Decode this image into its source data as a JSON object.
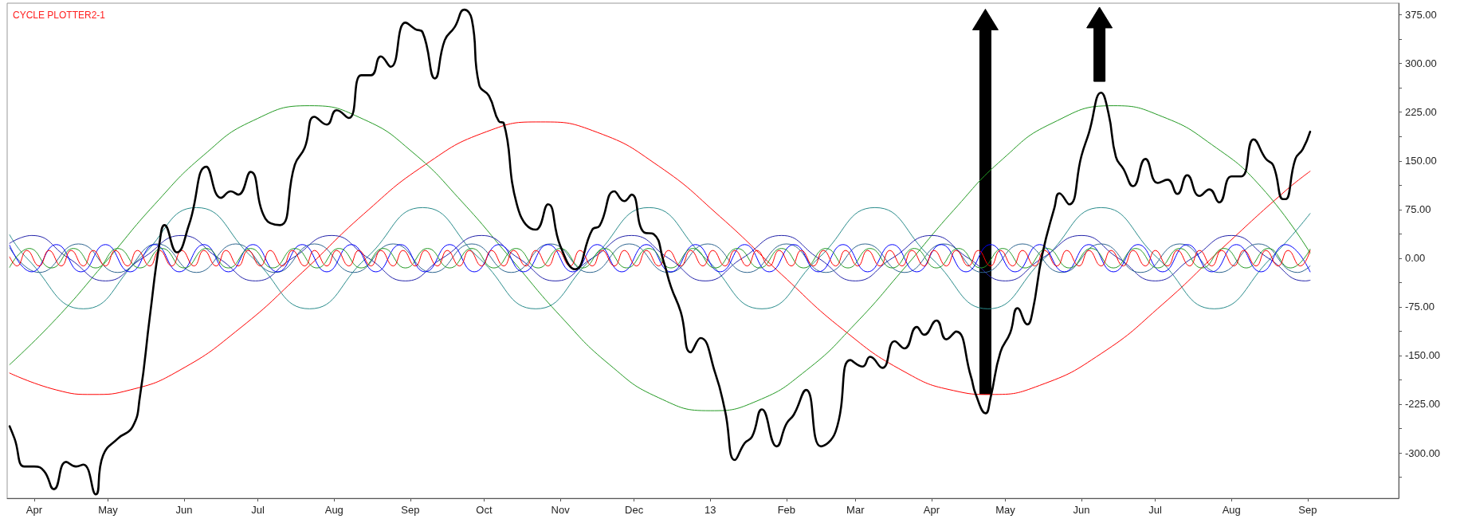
{
  "chart_data": {
    "type": "line",
    "title": "CYCLE PLOTTER2-1",
    "marker": "none",
    "line_style": "solid",
    "xlim": [
      "2012-03-21",
      "2013-10-08"
    ],
    "xticks": [
      {
        "value": "2012-04-01",
        "label": "Apr"
      },
      {
        "value": "2012-05-01",
        "label": "May"
      },
      {
        "value": "2012-06-01",
        "label": "Jun"
      },
      {
        "value": "2012-07-01",
        "label": "Jul"
      },
      {
        "value": "2012-08-01",
        "label": "Aug"
      },
      {
        "value": "2012-09-01",
        "label": "Sep"
      },
      {
        "value": "2012-10-01",
        "label": "Oct"
      },
      {
        "value": "2012-11-01",
        "label": "Nov"
      },
      {
        "value": "2012-12-01",
        "label": "Dec"
      },
      {
        "value": "2013-01-01",
        "label": "13"
      },
      {
        "value": "2013-02-01",
        "label": "Feb"
      },
      {
        "value": "2013-03-01",
        "label": "Mar"
      },
      {
        "value": "2013-04-01",
        "label": "Apr"
      },
      {
        "value": "2013-05-01",
        "label": "May"
      },
      {
        "value": "2013-06-01",
        "label": "Jun"
      },
      {
        "value": "2013-07-01",
        "label": "Jul"
      },
      {
        "value": "2013-08-01",
        "label": "Aug"
      },
      {
        "value": "2013-09-01",
        "label": "Sep"
      }
    ],
    "ylim": [
      -370,
      393
    ],
    "yticks": [
      {
        "value": 375,
        "label": "375.00"
      },
      {
        "value": 337.5,
        "label": null
      },
      {
        "value": 300,
        "label": "300.00"
      },
      {
        "value": 262.5,
        "label": null
      },
      {
        "value": 225,
        "label": "225.00"
      },
      {
        "value": 187.5,
        "label": null
      },
      {
        "value": 150,
        "label": "150.00"
      },
      {
        "value": 112.5,
        "label": null
      },
      {
        "value": 75,
        "label": "75.00"
      },
      {
        "value": 37.5,
        "label": null
      },
      {
        "value": 0,
        "label": "0.00"
      },
      {
        "value": -37.5,
        "label": null
      },
      {
        "value": -75,
        "label": "-75.00"
      },
      {
        "value": -112.5,
        "label": null
      },
      {
        "value": -150,
        "label": "-150.00"
      },
      {
        "value": -187.5,
        "label": null
      },
      {
        "value": -225,
        "label": "-225.00"
      },
      {
        "value": -262.5,
        "label": null
      },
      {
        "value": -300,
        "label": "-300.00"
      },
      {
        "value": -337.5,
        "label": null
      }
    ],
    "series": [
      {
        "color": "#000000",
        "x": [
          "2012-03-22",
          "2012-03-24",
          "2012-03-28",
          "2012-04-01",
          "2012-04-05",
          "2012-04-09",
          "2012-04-14",
          "2012-04-18",
          "2012-04-21",
          "2012-04-26",
          "2012-04-29",
          "2012-05-05",
          "2012-05-11",
          "2012-05-14",
          "2012-05-18",
          "2012-05-22",
          "2012-05-24",
          "2012-05-29",
          "2012-06-03",
          "2012-06-10",
          "2012-06-16",
          "2012-06-20",
          "2012-06-23",
          "2012-06-28",
          "2012-07-04",
          "2012-07-10",
          "2012-07-16",
          "2012-07-20",
          "2012-07-24",
          "2012-07-29",
          "2012-08-02",
          "2012-08-07",
          "2012-08-12",
          "2012-08-16",
          "2012-08-20",
          "2012-08-24",
          "2012-08-30",
          "2012-09-03",
          "2012-09-06",
          "2012-09-11",
          "2012-09-15",
          "2012-09-19",
          "2012-09-23",
          "2012-09-26",
          "2012-09-29",
          "2012-10-03",
          "2012-10-07",
          "2012-10-09",
          "2012-10-15",
          "2012-10-22",
          "2012-10-27",
          "2012-11-01",
          "2012-11-07",
          "2012-11-14",
          "2012-11-17",
          "2012-11-23",
          "2012-11-27",
          "2012-11-30",
          "2012-12-05",
          "2012-12-09",
          "2012-12-13",
          "2012-12-16",
          "2012-12-20",
          "2012-12-24",
          "2012-12-28",
          "2013-01-03",
          "2013-01-07",
          "2013-01-11",
          "2013-01-15",
          "2013-01-18",
          "2013-01-22",
          "2013-01-28",
          "2013-02-01",
          "2013-02-04",
          "2013-02-09",
          "2013-02-15",
          "2013-02-21",
          "2013-02-27",
          "2013-03-04",
          "2013-03-07",
          "2013-03-12",
          "2013-03-17",
          "2013-03-21",
          "2013-03-26",
          "2013-03-29",
          "2013-04-03",
          "2013-04-07",
          "2013-04-11",
          "2013-04-17",
          "2013-04-19",
          "2013-04-23",
          "2013-04-25",
          "2013-04-29",
          "2013-05-03",
          "2013-05-06",
          "2013-05-10",
          "2013-05-12",
          "2013-05-16",
          "2013-05-21",
          "2013-05-23",
          "2013-05-27",
          "2013-06-01",
          "2013-06-04",
          "2013-06-09",
          "2013-06-12",
          "2013-06-15",
          "2013-06-18",
          "2013-06-22",
          "2013-06-27",
          "2013-07-02",
          "2013-07-06",
          "2013-07-10",
          "2013-07-14",
          "2013-07-19",
          "2013-07-23",
          "2013-07-27",
          "2013-08-01",
          "2013-08-05",
          "2013-08-10",
          "2013-08-15",
          "2013-08-18",
          "2013-08-22",
          "2013-08-23",
          "2013-08-27",
          "2013-08-30",
          "2013-09-02"
        ],
        "values": [
          -259,
          -278,
          -321,
          -321,
          -328,
          -356,
          -314,
          -321,
          -318,
          -364,
          -304,
          -278,
          -260,
          -213,
          -91,
          24,
          51,
          9,
          52,
          141,
          93,
          103,
          98,
          133,
          61,
          51,
          144,
          170,
          218,
          206,
          228,
          216,
          282,
          282,
          311,
          295,
          363,
          353,
          348,
          277,
          336,
          356,
          383,
          368,
          267,
          250,
          211,
          208,
          74,
          44,
          83,
          19,
          -17,
          44,
          50,
          103,
          88,
          98,
          40,
          37,
          -5,
          -44,
          -83,
          -145,
          -123,
          -177,
          -235,
          -311,
          -285,
          -275,
          -233,
          -290,
          -255,
          -241,
          -203,
          -290,
          -267,
          -157,
          -167,
          -152,
          -169,
          -128,
          -139,
          -106,
          -118,
          -96,
          -125,
          -113,
          -182,
          -210,
          -239,
          -215,
          -145,
          -115,
          -77,
          -102,
          -84,
          5,
          78,
          100,
          83,
          158,
          193,
          255,
          223,
          156,
          138,
          111,
          153,
          116,
          121,
          99,
          128,
          96,
          106,
          86,
          126,
          126,
          183,
          153,
          143,
          91,
          91,
          153,
          168,
          195
        ]
      },
      {
        "color": "#ff0000",
        "x": [
          "2012-03-22",
          "2012-04-10",
          "2012-04-25",
          "2012-05-10",
          "2012-05-30",
          "2012-06-24",
          "2012-07-19",
          "2012-08-13",
          "2012-09-07",
          "2012-10-02",
          "2012-10-24",
          "2012-11-16",
          "2012-12-11",
          "2013-01-05",
          "2013-01-30",
          "2013-02-24",
          "2013-03-21",
          "2013-04-10",
          "2013-04-25",
          "2013-05-15",
          "2013-06-09",
          "2013-07-04",
          "2013-07-29",
          "2013-08-23",
          "2013-09-02"
        ],
        "values": [
          -177,
          -203,
          -210,
          -203,
          -173,
          -107,
          -22,
          68,
          144,
          195,
          210,
          194,
          142,
          64,
          -25,
          -110,
          -175,
          -204,
          -210,
          -196,
          -147,
          -71,
          18,
          104,
          134
        ]
      },
      {
        "color": "#229922",
        "x": [
          "2012-03-22",
          "2012-04-10",
          "2012-04-30",
          "2012-05-20",
          "2012-06-09",
          "2012-06-29",
          "2012-07-22",
          "2012-08-13",
          "2012-09-02",
          "2012-09-22",
          "2012-10-12",
          "2012-11-01",
          "2012-11-21",
          "2012-12-11",
          "2013-01-01",
          "2013-01-20",
          "2013-02-09",
          "2013-03-01",
          "2013-03-21",
          "2013-04-10",
          "2013-04-30",
          "2013-05-20",
          "2013-06-14",
          "2013-07-04",
          "2013-07-24",
          "2013-08-13",
          "2013-09-02"
        ],
        "values": [
          -164,
          -93,
          -6,
          83,
          159,
          212,
          235,
          214,
          163,
          87,
          -1,
          -89,
          -164,
          -215,
          -235,
          -220,
          -173,
          -101,
          -15,
          74,
          153,
          208,
          235,
          218,
          175,
          110,
          8
        ]
      },
      {
        "color": "#2a8c8c",
        "x": [
          "2012-03-22",
          "2012-03-29",
          "2012-04-21",
          "2012-05-14",
          "2012-06-06",
          "2012-06-29",
          "2012-07-22",
          "2012-08-14",
          "2012-09-06",
          "2012-09-29",
          "2012-10-22",
          "2012-11-14",
          "2012-12-07",
          "2012-12-30",
          "2013-01-22",
          "2013-02-14",
          "2013-03-09",
          "2013-04-01",
          "2013-04-24",
          "2013-05-17",
          "2013-06-09",
          "2013-07-02",
          "2013-07-25",
          "2013-08-17",
          "2013-09-02"
        ],
        "values": [
          36,
          0,
          -78,
          0,
          78,
          0,
          -78,
          0,
          78,
          0,
          -78,
          0,
          78,
          0,
          -78,
          0,
          78,
          0,
          -78,
          0,
          78,
          0,
          -78,
          0,
          69
        ]
      },
      {
        "color": "#2222aa",
        "x": [
          "2012-03-22",
          "2012-03-31",
          "2012-04-15",
          "2012-04-30",
          "2012-05-15",
          "2012-05-31",
          "2012-06-15",
          "2012-06-30",
          "2012-07-15",
          "2012-07-31",
          "2012-08-15",
          "2012-08-30",
          "2012-09-14",
          "2012-09-30",
          "2012-10-15",
          "2012-10-30",
          "2012-11-14",
          "2012-11-30",
          "2012-12-15",
          "2012-12-30",
          "2013-01-14",
          "2013-01-30",
          "2013-02-14",
          "2013-03-01",
          "2013-03-16",
          "2013-04-01",
          "2013-04-16",
          "2013-05-01",
          "2013-05-16",
          "2013-06-01",
          "2013-06-16",
          "2013-07-01",
          "2013-07-16",
          "2013-08-01",
          "2013-08-16",
          "2013-08-31",
          "2013-09-02"
        ],
        "values": [
          23,
          35,
          0,
          -35,
          0,
          35,
          0,
          -35,
          0,
          35,
          0,
          -35,
          0,
          35,
          0,
          -35,
          0,
          35,
          0,
          -35,
          0,
          35,
          0,
          -35,
          0,
          35,
          0,
          -35,
          0,
          35,
          0,
          -35,
          0,
          35,
          0,
          -35,
          -34
        ]
      },
      {
        "color": "#2f6690",
        "x": [
          "2012-03-22",
          "2012-04-03",
          "2012-04-19",
          "2012-05-05",
          "2012-05-21",
          "2012-06-06",
          "2012-06-22",
          "2012-07-08",
          "2012-07-24",
          "2012-08-09",
          "2012-08-25",
          "2012-09-10",
          "2012-09-26",
          "2012-10-12",
          "2012-10-28",
          "2012-11-13",
          "2012-11-29",
          "2012-12-15",
          "2012-12-31",
          "2013-01-16",
          "2013-02-01",
          "2013-02-17",
          "2013-03-05",
          "2013-03-21",
          "2013-04-06",
          "2013-04-22",
          "2013-05-08",
          "2013-05-24",
          "2013-06-09",
          "2013-06-25",
          "2013-07-11",
          "2013-07-27",
          "2013-08-12",
          "2013-08-28",
          "2013-09-02"
        ],
        "values": [
          16,
          -22,
          22,
          -22,
          22,
          -22,
          22,
          -22,
          22,
          -22,
          22,
          -22,
          22,
          -22,
          22,
          -22,
          22,
          -22,
          22,
          -22,
          22,
          -22,
          22,
          -22,
          22,
          -22,
          22,
          -22,
          22,
          -22,
          22,
          -22,
          22,
          -22,
          -12
        ]
      },
      {
        "color": "#0000ff",
        "x": [
          "2012-03-22",
          "2012-03-31",
          "2012-04-10",
          "2012-04-20",
          "2012-04-30",
          "2012-05-10",
          "2012-05-20",
          "2012-05-30",
          "2012-06-09",
          "2012-06-19",
          "2012-06-29",
          "2012-07-09",
          "2012-07-19",
          "2012-07-29",
          "2012-08-08",
          "2012-08-18",
          "2012-08-28",
          "2012-09-07",
          "2012-09-17",
          "2012-09-27",
          "2012-10-07",
          "2012-10-17",
          "2012-10-27",
          "2012-11-06",
          "2012-11-16",
          "2012-11-26",
          "2012-12-06",
          "2012-12-16",
          "2012-12-26",
          "2013-01-05",
          "2013-01-15",
          "2013-01-25",
          "2013-02-04",
          "2013-02-14",
          "2013-02-24",
          "2013-03-06",
          "2013-03-16",
          "2013-03-26",
          "2013-04-05",
          "2013-04-15",
          "2013-04-25",
          "2013-05-05",
          "2013-05-15",
          "2013-05-25",
          "2013-06-04",
          "2013-06-14",
          "2013-06-24",
          "2013-07-04",
          "2013-07-14",
          "2013-07-24",
          "2013-08-03",
          "2013-08-13",
          "2013-08-23",
          "2013-09-02"
        ],
        "values": [
          20,
          -21,
          21,
          -21,
          21,
          -21,
          21,
          -21,
          21,
          -21,
          21,
          -21,
          21,
          -21,
          21,
          -21,
          21,
          -21,
          21,
          -21,
          21,
          -21,
          21,
          -21,
          21,
          -21,
          21,
          -21,
          21,
          -21,
          21,
          -21,
          21,
          -21,
          21,
          -21,
          21,
          -21,
          21,
          -21,
          21,
          -21,
          21,
          -21,
          21,
          -21,
          21,
          -21,
          21,
          -21,
          21,
          -21,
          21,
          -21
        ]
      },
      {
        "color": "#229922",
        "x": [
          "2012-03-22",
          "2012-03-30",
          "2012-04-08",
          "2012-04-17",
          "2012-04-26",
          "2012-05-05",
          "2012-05-14",
          "2012-05-23",
          "2012-06-01",
          "2012-06-10",
          "2012-06-19",
          "2012-06-28",
          "2012-07-07",
          "2012-07-16",
          "2012-07-25",
          "2012-08-03",
          "2012-08-12",
          "2012-08-21",
          "2012-08-30",
          "2012-09-08",
          "2012-09-17",
          "2012-09-26",
          "2012-10-05",
          "2012-10-14",
          "2012-10-23",
          "2012-11-01",
          "2012-11-10",
          "2012-11-19",
          "2012-11-28",
          "2012-12-07",
          "2012-12-16",
          "2012-12-25",
          "2013-01-03",
          "2013-01-12",
          "2013-01-21",
          "2013-01-30",
          "2013-02-08",
          "2013-02-17",
          "2013-02-26",
          "2013-03-07",
          "2013-03-16",
          "2013-03-25",
          "2013-04-03",
          "2013-04-12",
          "2013-04-21",
          "2013-04-30",
          "2013-05-09",
          "2013-05-18",
          "2013-05-27",
          "2013-06-05",
          "2013-06-14",
          "2013-06-23",
          "2013-07-02",
          "2013-07-11",
          "2013-07-20",
          "2013-07-29",
          "2013-08-07",
          "2013-08-16",
          "2013-08-25",
          "2013-09-02"
        ],
        "values": [
          -14,
          15,
          -15,
          15,
          -15,
          15,
          -15,
          15,
          -15,
          15,
          -15,
          15,
          -15,
          15,
          -15,
          15,
          -15,
          15,
          -15,
          15,
          -15,
          15,
          -15,
          15,
          -15,
          15,
          -15,
          15,
          -15,
          15,
          -15,
          15,
          -15,
          15,
          -15,
          15,
          -15,
          15,
          -15,
          15,
          -15,
          15,
          -15,
          15,
          -15,
          15,
          -15,
          15,
          -15,
          15,
          -15,
          15,
          -15,
          15,
          -15,
          15,
          -15,
          15,
          -15,
          14
        ]
      },
      {
        "color": "#ff0000",
        "x": [
          "2012-03-22",
          "2012-03-25",
          "2012-03-29",
          "2012-04-03",
          "2012-04-07",
          "2012-04-12",
          "2012-04-16",
          "2012-04-21",
          "2012-04-25",
          "2012-04-30",
          "2012-05-04",
          "2012-05-09",
          "2012-05-13",
          "2012-05-18",
          "2012-05-22",
          "2012-05-27",
          "2012-05-31",
          "2012-06-05",
          "2012-06-09",
          "2012-06-14",
          "2012-06-18",
          "2012-06-23",
          "2012-06-27",
          "2012-07-02",
          "2012-07-06",
          "2012-07-11",
          "2012-07-15",
          "2012-07-20",
          "2012-07-24",
          "2012-07-29",
          "2012-08-02",
          "2012-08-07",
          "2012-08-11",
          "2012-08-16",
          "2012-08-20",
          "2012-08-25",
          "2012-08-29",
          "2012-09-03",
          "2012-09-07",
          "2012-09-12",
          "2012-09-16",
          "2012-09-21",
          "2012-09-25",
          "2012-09-30",
          "2012-10-04",
          "2012-10-09",
          "2012-10-13",
          "2012-10-18",
          "2012-10-22",
          "2012-10-27",
          "2012-10-31",
          "2012-11-05",
          "2012-11-09",
          "2012-11-14",
          "2012-11-18",
          "2012-11-23",
          "2012-11-27",
          "2012-12-02",
          "2012-12-06",
          "2012-12-11",
          "2012-12-15",
          "2012-12-20",
          "2012-12-24",
          "2012-12-29",
          "2013-01-02",
          "2013-01-07",
          "2013-01-11",
          "2013-01-16",
          "2013-01-20",
          "2013-01-25",
          "2013-01-29",
          "2013-02-03",
          "2013-02-07",
          "2013-02-12",
          "2013-02-16",
          "2013-02-21",
          "2013-02-25",
          "2013-03-02",
          "2013-03-06",
          "2013-03-11",
          "2013-03-15",
          "2013-03-20",
          "2013-03-24",
          "2013-03-29",
          "2013-04-02",
          "2013-04-07",
          "2013-04-11",
          "2013-04-16",
          "2013-04-20",
          "2013-04-25",
          "2013-04-29",
          "2013-05-04",
          "2013-05-08",
          "2013-05-13",
          "2013-05-17",
          "2013-05-22",
          "2013-05-26",
          "2013-05-31",
          "2013-06-04",
          "2013-06-09",
          "2013-06-13",
          "2013-06-18",
          "2013-06-22",
          "2013-06-27",
          "2013-07-01",
          "2013-07-06",
          "2013-07-10",
          "2013-07-15",
          "2013-07-19",
          "2013-07-24",
          "2013-07-28",
          "2013-08-02",
          "2013-08-06",
          "2013-08-11",
          "2013-08-15",
          "2013-08-20",
          "2013-08-24",
          "2013-08-29",
          "2013-09-02"
        ],
        "values": [
          2,
          -12,
          12,
          -12,
          12,
          -12,
          12,
          -12,
          12,
          -12,
          12,
          -12,
          12,
          -12,
          12,
          -12,
          12,
          -12,
          12,
          -12,
          12,
          -12,
          12,
          -12,
          12,
          -12,
          12,
          -12,
          12,
          -12,
          12,
          -12,
          12,
          -12,
          12,
          -12,
          12,
          -12,
          12,
          -12,
          12,
          -12,
          12,
          -12,
          12,
          -12,
          12,
          -12,
          12,
          -12,
          12,
          -12,
          12,
          -12,
          12,
          -12,
          12,
          -12,
          12,
          -12,
          12,
          -12,
          12,
          -12,
          12,
          -12,
          12,
          -12,
          12,
          -12,
          12,
          -12,
          12,
          -12,
          12,
          -12,
          12,
          -12,
          12,
          -12,
          12,
          -12,
          12,
          -12,
          12,
          -12,
          12,
          -12,
          12,
          -12,
          12,
          -12,
          12,
          -12,
          12,
          -12,
          12,
          -12,
          12,
          -12,
          12,
          -12,
          12,
          -12,
          12,
          -12,
          12,
          -12,
          12,
          -12,
          12,
          -12,
          12,
          -12,
          12,
          -12,
          12,
          -12,
          12
        ]
      }
    ]
  }
}
